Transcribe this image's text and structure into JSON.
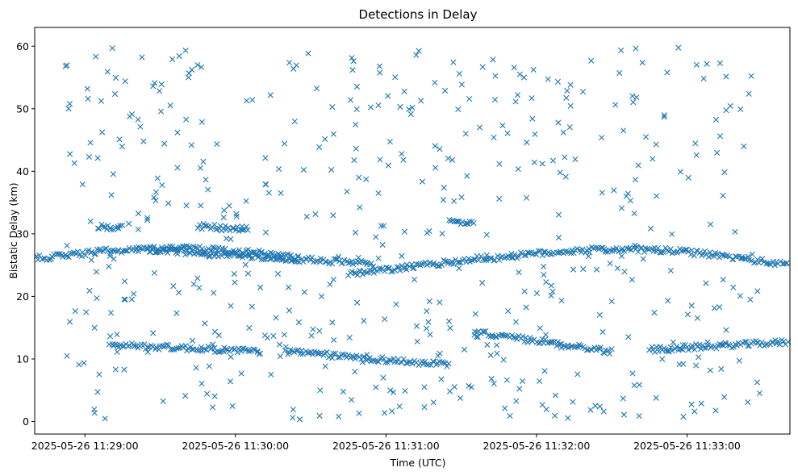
{
  "chart_data": {
    "type": "scatter",
    "title": "Detections in Delay",
    "xlabel": "Time (UTC)",
    "ylabel": "Bistatic Delay (km)",
    "xlim": [
      "2025-05-26 11:28:40",
      "2025-05-26 11:33:41"
    ],
    "ylim": [
      -2,
      63
    ],
    "x_ticks": [
      "2025-05-26 11:29:00",
      "2025-05-26 11:30:00",
      "2025-05-26 11:31:00",
      "2025-05-26 11:32:00",
      "2025-05-26 11:33:00"
    ],
    "y_ticks": [
      0,
      10,
      20,
      30,
      40,
      50,
      60
    ],
    "marker": "x",
    "color": "#1f77b4",
    "grid": false,
    "legend": "none",
    "series": [
      {
        "tracks": [
          {
            "t0": "2025-05-26 11:28:40",
            "t1": "2025-05-26 11:30:25",
            "y0": 26.0,
            "y1": 26.3,
            "bulge": 1.5
          },
          {
            "t0": "2025-05-26 11:29:25",
            "t1": "2025-05-26 11:30:55",
            "y0": 27.5,
            "y1": 25.2
          },
          {
            "t0": "2025-05-26 11:30:45",
            "t1": "2025-05-26 11:31:40",
            "y0": 23.5,
            "y1": 26.2
          },
          {
            "t0": "2025-05-26 11:31:40",
            "t1": "2025-05-26 11:33:40",
            "y0": 26.0,
            "y1": 25.0,
            "bulge": 2.0
          },
          {
            "t0": "2025-05-26 11:29:10",
            "t1": "2025-05-26 11:30:10",
            "y0": 12.3,
            "y1": 11.2
          },
          {
            "t0": "2025-05-26 11:30:20",
            "t1": "2025-05-26 11:31:25",
            "y0": 11.2,
            "y1": 9.0
          },
          {
            "t0": "2025-05-26 11:31:35",
            "t1": "2025-05-26 11:32:30",
            "y0": 14.3,
            "y1": 11.2
          },
          {
            "t0": "2025-05-26 11:32:45",
            "t1": "2025-05-26 11:33:40",
            "y0": 11.5,
            "y1": 12.7
          },
          {
            "t0": "2025-05-26 11:29:05",
            "t1": "2025-05-26 11:29:15",
            "y0": 31.2,
            "y1": 31.0
          },
          {
            "t0": "2025-05-26 11:29:45",
            "t1": "2025-05-26 11:30:05",
            "y0": 31.2,
            "y1": 30.8
          },
          {
            "t0": "2025-05-26 11:31:25",
            "t1": "2025-05-26 11:31:35",
            "y0": 32.0,
            "y1": 31.6
          }
        ],
        "random_count": 520
      }
    ]
  }
}
